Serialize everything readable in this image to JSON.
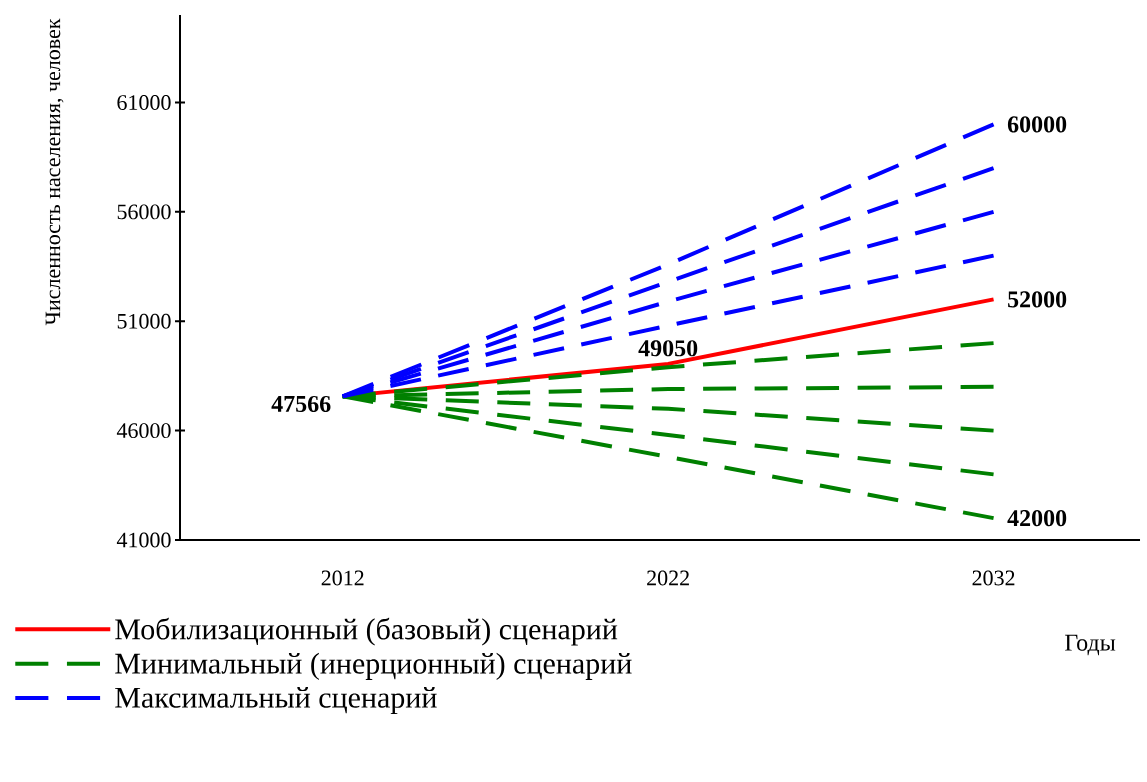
{
  "chart_data": {
    "type": "line",
    "ylabel": "Численность населения, человек",
    "xlabel": "Годы",
    "categories": [
      "2012",
      "2022",
      "2032"
    ],
    "ylim": [
      41000,
      65000
    ],
    "yticks": [
      41000,
      46000,
      51000,
      56000,
      61000
    ],
    "legend": "bottom left",
    "series": [
      {
        "name": "Мобилизационный (базовый) сценарий",
        "color": "#ff0000",
        "line_style": "solid",
        "values": [
          47566,
          49050,
          52000
        ],
        "value_labels": [
          "47566",
          "49050",
          "52000"
        ]
      },
      {
        "name": "Минимальный (инерционный) сценарий",
        "color": "#008000",
        "line_style": "dashed",
        "values": [
          47566,
          48900,
          50000
        ]
      },
      {
        "color": "#008000",
        "line_style": "dashed",
        "values": [
          47566,
          47900,
          48000
        ]
      },
      {
        "color": "#008000",
        "line_style": "dashed",
        "values": [
          47566,
          47000,
          46000
        ]
      },
      {
        "color": "#008000",
        "line_style": "dashed",
        "values": [
          47566,
          45800,
          44000
        ]
      },
      {
        "color": "#008000",
        "line_style": "dashed",
        "values": [
          47566,
          44800,
          42000
        ],
        "value_labels": [
          null,
          null,
          "42000"
        ]
      },
      {
        "name": "Максимальный сценарий",
        "color": "#0000ff",
        "line_style": "dashed",
        "values": [
          47566,
          53600,
          60000
        ],
        "value_labels": [
          null,
          null,
          "60000"
        ]
      },
      {
        "color": "#0000ff",
        "line_style": "dashed",
        "values": [
          47566,
          52800,
          58000
        ]
      },
      {
        "color": "#0000ff",
        "line_style": "dashed",
        "values": [
          47566,
          51900,
          56000
        ]
      },
      {
        "color": "#0000ff",
        "line_style": "dashed",
        "values": [
          47566,
          50800,
          54000
        ]
      }
    ]
  }
}
